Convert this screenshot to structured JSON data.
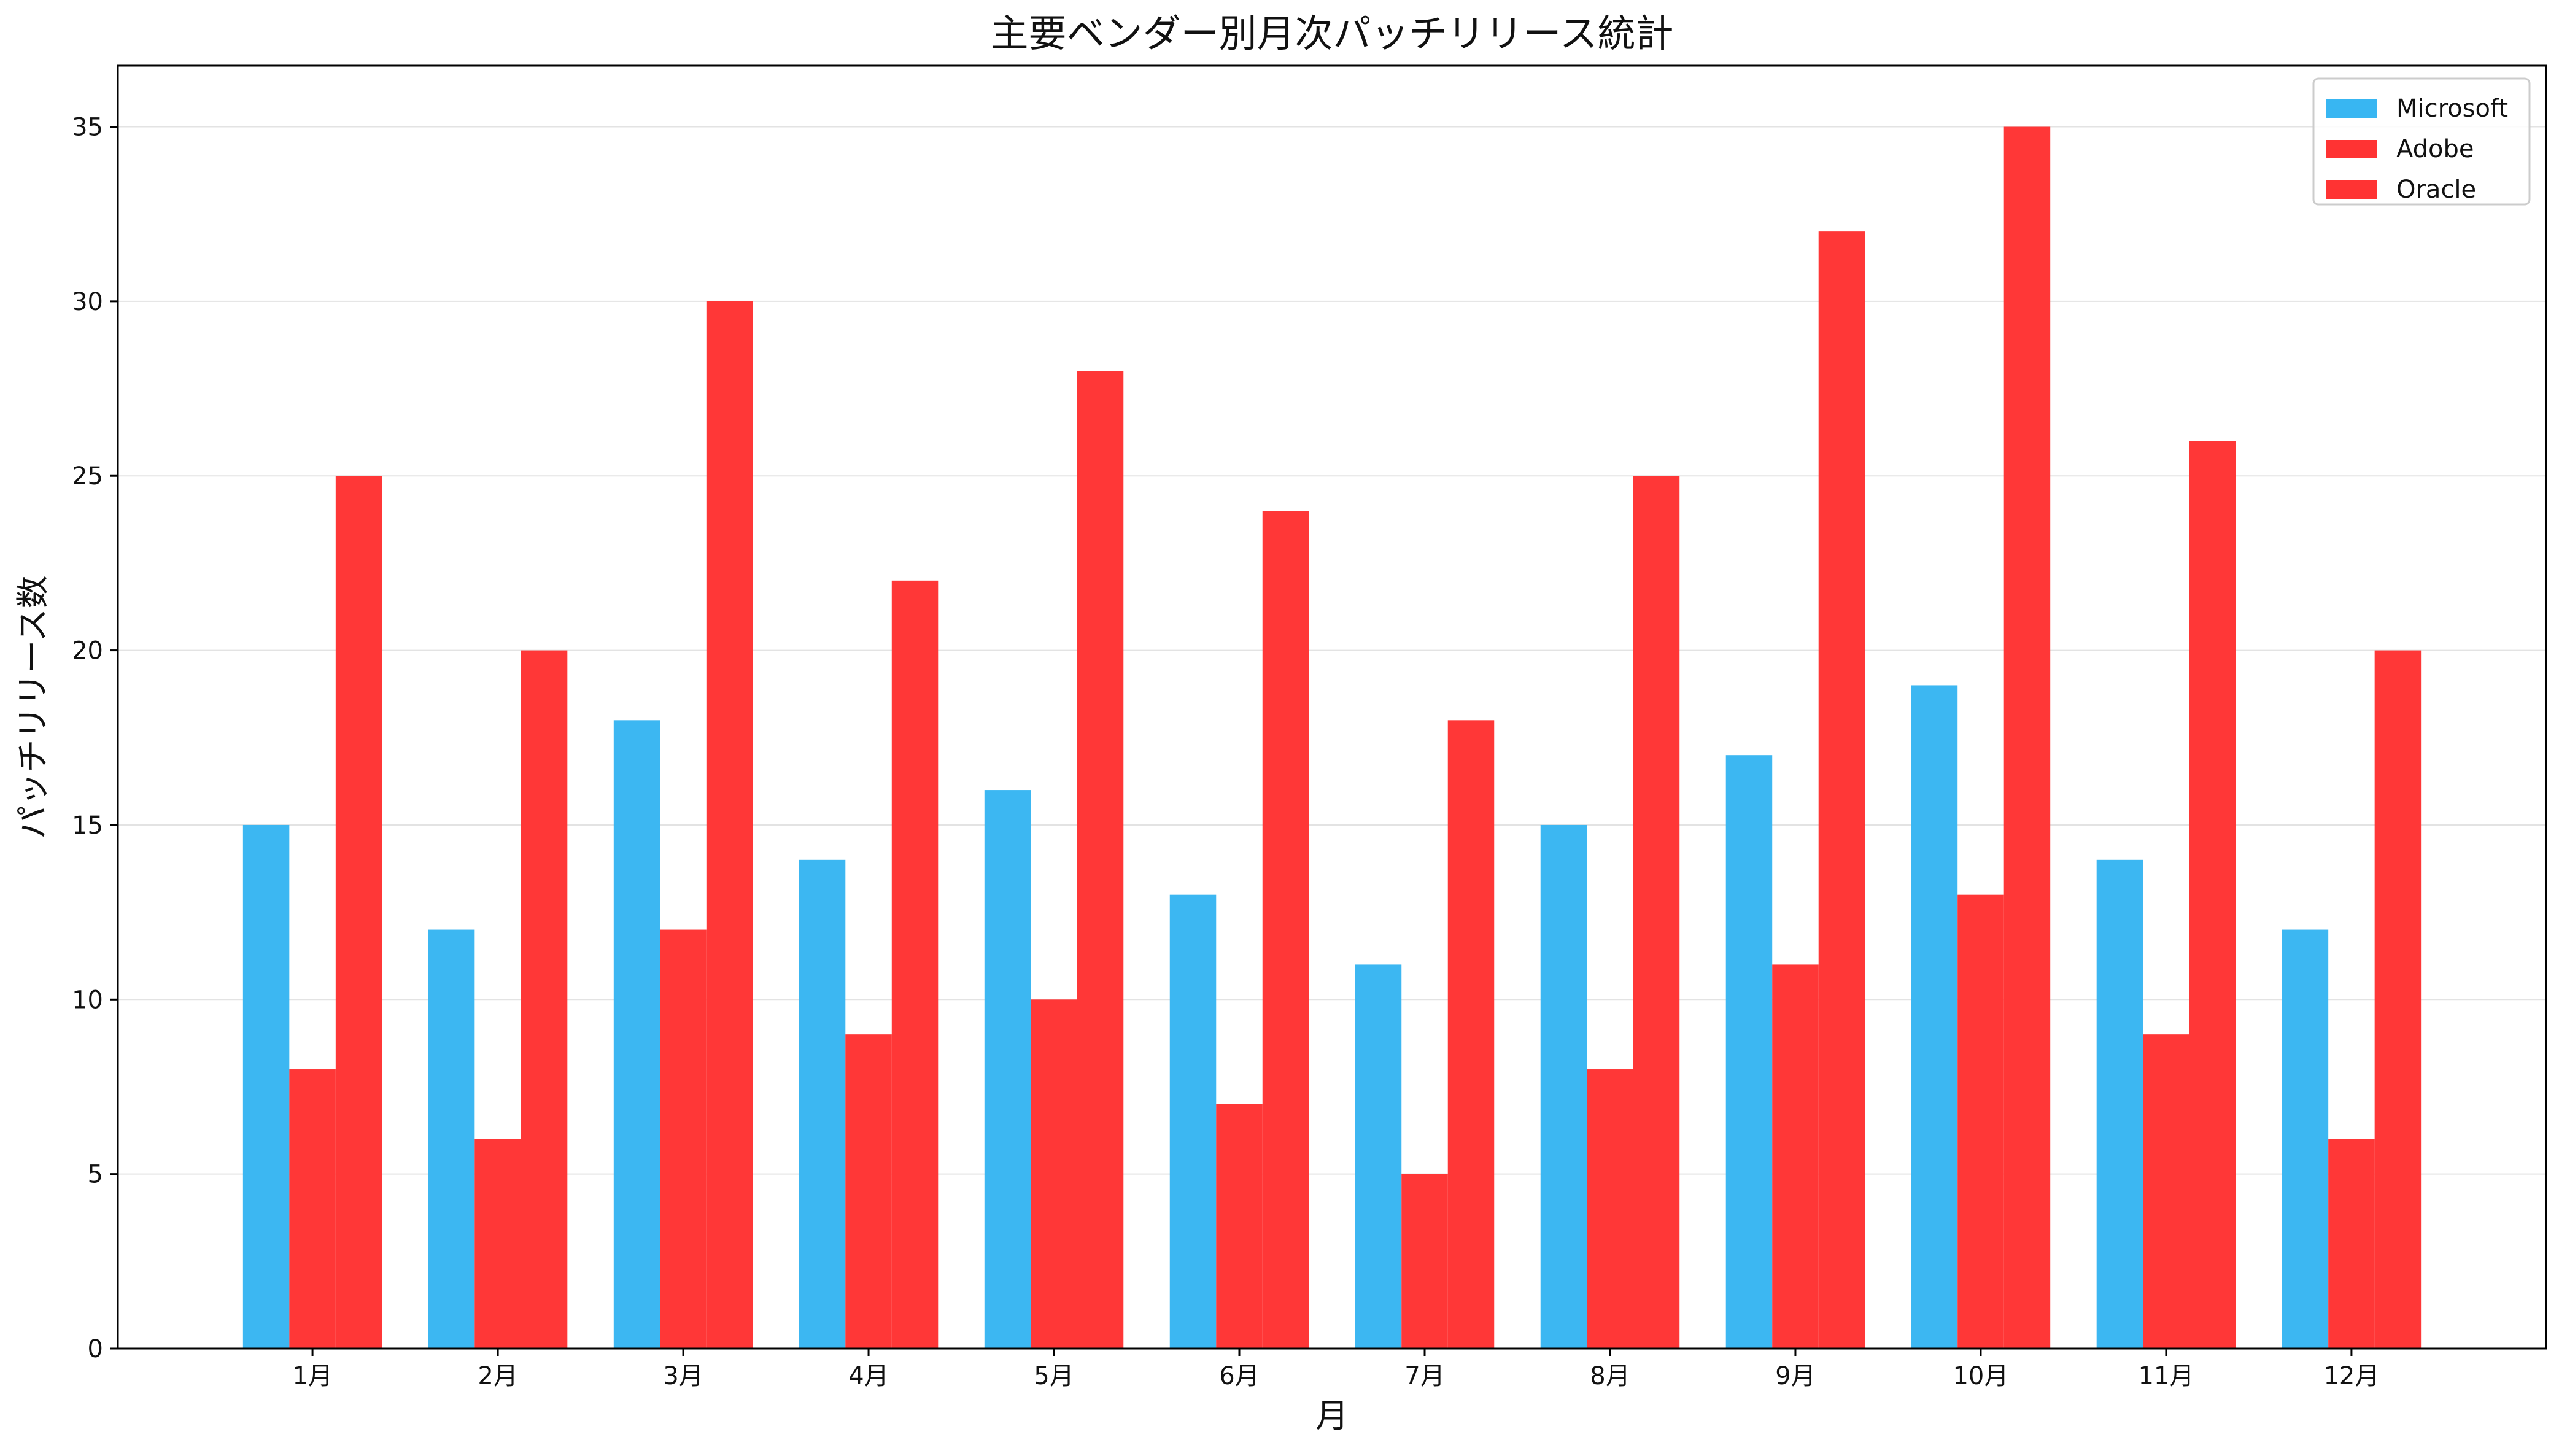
{
  "chart_data": {
    "type": "bar",
    "title": "主要ベンダー別月次パッチリリース統計",
    "xlabel": "月",
    "ylabel": "パッチリリース数",
    "categories": [
      "1月",
      "2月",
      "3月",
      "4月",
      "5月",
      "6月",
      "7月",
      "8月",
      "9月",
      "10月",
      "11月",
      "12月"
    ],
    "series": [
      {
        "name": "Microsoft",
        "color": "#38b6f2",
        "values": [
          15,
          12,
          18,
          14,
          16,
          13,
          11,
          15,
          17,
          19,
          14,
          12
        ]
      },
      {
        "name": "Adobe",
        "color": "#ff3333",
        "values": [
          8,
          6,
          12,
          9,
          10,
          7,
          5,
          8,
          11,
          13,
          9,
          6
        ]
      },
      {
        "name": "Oracle",
        "color": "#ff3333",
        "values": [
          25,
          20,
          30,
          22,
          28,
          24,
          18,
          25,
          32,
          35,
          26,
          20
        ]
      }
    ],
    "yticks": [
      0,
      5,
      10,
      15,
      20,
      25,
      30,
      35
    ],
    "ylim": [
      0,
      36.75
    ],
    "grid": "y",
    "legend": "top-right"
  }
}
